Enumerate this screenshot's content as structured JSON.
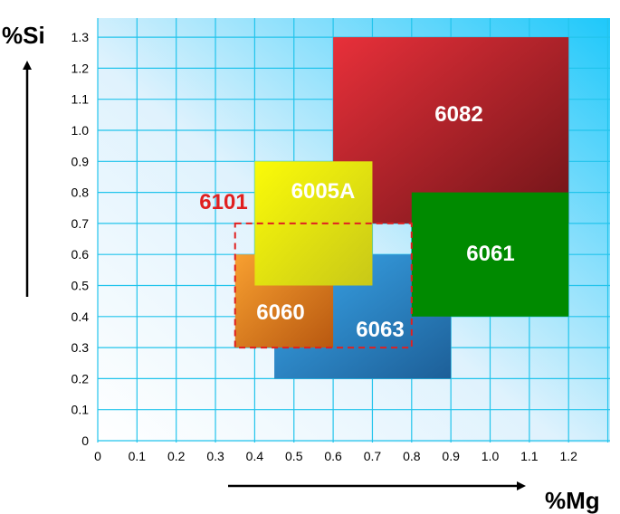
{
  "chart_data": {
    "type": "rectangle-regions",
    "xlabel": "%Mg",
    "ylabel": "%Si",
    "xlim": [
      0,
      1.3
    ],
    "ylim": [
      0,
      1.3
    ],
    "x_ticks": [
      "0",
      "0.1",
      "0.2",
      "0.3",
      "0.4",
      "0.5",
      "0.6",
      "0.7",
      "0.8",
      "0.9",
      "1.0",
      "1.1",
      "1.2"
    ],
    "y_ticks": [
      "0",
      "0.1",
      "0.2",
      "0.3",
      "0.4",
      "0.5",
      "0.6",
      "0.7",
      "0.8",
      "0.9",
      "1.0",
      "1.1",
      "1.2",
      "1.3"
    ],
    "grid": true,
    "regions": [
      {
        "name": "6082",
        "mg": [
          0.6,
          1.2
        ],
        "si": [
          0.7,
          1.3
        ],
        "colors": [
          "#e8303a",
          "#6e1418"
        ]
      },
      {
        "name": "6063",
        "mg": [
          0.45,
          0.9
        ],
        "si": [
          0.2,
          0.6
        ],
        "colors": [
          "#3aa8ec",
          "#1d5f98"
        ]
      },
      {
        "name": "6060",
        "mg": [
          0.35,
          0.6
        ],
        "si": [
          0.3,
          0.6
        ],
        "colors": [
          "#f8a030",
          "#b85810"
        ]
      },
      {
        "name": "6005A",
        "mg": [
          0.4,
          0.7
        ],
        "si": [
          0.5,
          0.9
        ],
        "colors": [
          "#fbfb08",
          "#c8c818"
        ]
      },
      {
        "name": "6061",
        "mg": [
          0.8,
          1.2
        ],
        "si": [
          0.4,
          0.8
        ],
        "colors": [
          "#008a00",
          "#008a00"
        ]
      }
    ],
    "dashed_region": {
      "name": "6101",
      "mg": [
        0.35,
        0.8
      ],
      "si": [
        0.3,
        0.7
      ],
      "color": "#e02020"
    }
  }
}
